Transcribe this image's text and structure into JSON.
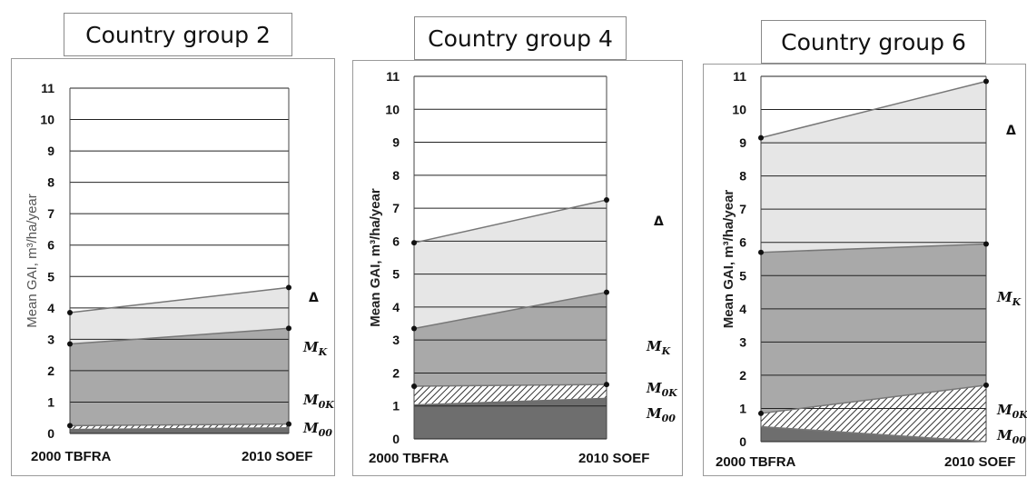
{
  "chart_data": [
    {
      "type": "area",
      "title": "Country group 2",
      "ylabel": "Mean GAI, m³/ha/year",
      "categories": [
        "2000 TBFRA",
        "2010 SOEF"
      ],
      "ylim": [
        0,
        11
      ],
      "yticks": [
        "0",
        "1",
        "2",
        "3",
        "4",
        "5",
        "6",
        "7",
        "8",
        "9",
        "10",
        "11"
      ],
      "grid": true,
      "series": [
        {
          "name": "M00",
          "values": [
            0.15,
            0.2
          ],
          "fill": "#6e6e6e",
          "pattern": "none"
        },
        {
          "name": "M0K",
          "values": [
            0.25,
            0.3
          ],
          "fill": "#ffffff",
          "pattern": "hatch"
        },
        {
          "name": "MK",
          "values": [
            2.85,
            3.35
          ],
          "fill": "#a9a9a9",
          "pattern": "none"
        },
        {
          "name": "Δ",
          "values": [
            3.85,
            4.65
          ],
          "fill": "#e6e6e6",
          "pattern": "none"
        }
      ],
      "label_text": {
        "M00": "M",
        "M00_sub": "00",
        "M0K": "M",
        "M0K_sub": "0K",
        "MK": "M",
        "MK_sub": "K",
        "Delta": "Δ"
      }
    },
    {
      "type": "area",
      "title": "Country group 4",
      "ylabel": "Mean GAI, m³/ha/year",
      "categories": [
        "2000 TBFRA",
        "2010 SOEF"
      ],
      "ylim": [
        0,
        11
      ],
      "yticks": [
        "0",
        "1",
        "2",
        "3",
        "4",
        "5",
        "6",
        "7",
        "8",
        "9",
        "10",
        "11"
      ],
      "grid": true,
      "series": [
        {
          "name": "M00",
          "values": [
            1.05,
            1.25
          ],
          "fill": "#6e6e6e",
          "pattern": "none"
        },
        {
          "name": "M0K",
          "values": [
            1.6,
            1.65
          ],
          "fill": "#ffffff",
          "pattern": "hatch"
        },
        {
          "name": "MK",
          "values": [
            3.35,
            4.45
          ],
          "fill": "#a9a9a9",
          "pattern": "none"
        },
        {
          "name": "Δ",
          "values": [
            5.95,
            7.25
          ],
          "fill": "#e6e6e6",
          "pattern": "none"
        }
      ],
      "label_text": {
        "M00": "M",
        "M00_sub": "00",
        "M0K": "M",
        "M0K_sub": "0K",
        "MK": "M",
        "MK_sub": "K",
        "Delta": "Δ"
      }
    },
    {
      "type": "area",
      "title": "Country group 6",
      "ylabel": "Mean GAI, m³/ha/year",
      "categories": [
        "2000 TBFRA",
        "2010 SOEF"
      ],
      "ylim": [
        0,
        11
      ],
      "yticks": [
        "0",
        "1",
        "2",
        "3",
        "4",
        "5",
        "6",
        "7",
        "8",
        "9",
        "10",
        "11"
      ],
      "grid": true,
      "series": [
        {
          "name": "M00",
          "values": [
            0.45,
            0.0
          ],
          "fill": "#6e6e6e",
          "pattern": "none"
        },
        {
          "name": "M0K",
          "values": [
            0.85,
            1.7
          ],
          "fill": "#ffffff",
          "pattern": "hatch"
        },
        {
          "name": "MK",
          "values": [
            5.7,
            5.95
          ],
          "fill": "#a9a9a9",
          "pattern": "none"
        },
        {
          "name": "Δ",
          "values": [
            9.15,
            10.85
          ],
          "fill": "#e6e6e6",
          "pattern": "none"
        }
      ],
      "label_text": {
        "M00": "M",
        "M00_sub": "00",
        "M0K": "M",
        "M0K_sub": "0K",
        "MK": "M",
        "MK_sub": "K",
        "Delta": "Δ"
      }
    }
  ]
}
